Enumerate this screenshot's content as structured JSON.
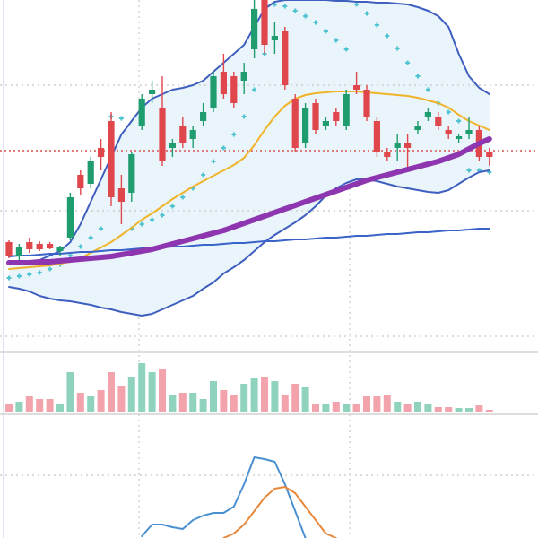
{
  "chart_data": [
    {
      "type": "candlestick",
      "open": [
        120,
        105,
        120,
        118,
        118,
        110,
        125,
        195,
        185,
        225,
        255,
        180,
        175,
        250,
        285,
        270,
        225,
        250,
        235,
        255,
        270,
        310,
        305,
        300,
        335,
        390,
        345,
        355,
        280,
        230,
        275,
        250,
        265,
        250,
        295,
        290,
        255,
        220,
        225,
        230,
        245,
        260,
        260,
        245,
        235,
        240,
        245,
        220
      ],
      "high": [
        122,
        118,
        125,
        121,
        120,
        116,
        175,
        200,
        215,
        235,
        265,
        195,
        220,
        285,
        300,
        305,
        235,
        260,
        250,
        275,
        310,
        330,
        310,
        320,
        390,
        390,
        365,
        360,
        285,
        275,
        280,
        260,
        270,
        290,
        310,
        295,
        260,
        225,
        240,
        240,
        255,
        270,
        265,
        250,
        240,
        260,
        250,
        225
      ],
      "low": [
        102,
        100,
        108,
        110,
        112,
        105,
        122,
        172,
        180,
        200,
        160,
        140,
        165,
        245,
        275,
        205,
        215,
        225,
        225,
        250,
        265,
        280,
        270,
        285,
        325,
        330,
        330,
        290,
        220,
        225,
        240,
        245,
        250,
        245,
        285,
        255,
        215,
        210,
        210,
        200,
        240,
        255,
        245,
        235,
        230,
        235,
        210,
        205
      ],
      "close": [
        105,
        115,
        112,
        112,
        113,
        114,
        170,
        180,
        210,
        215,
        170,
        165,
        218,
        280,
        290,
        210,
        230,
        230,
        245,
        265,
        305,
        285,
        275,
        310,
        380,
        340,
        350,
        295,
        225,
        270,
        245,
        255,
        255,
        285,
        290,
        260,
        220,
        215,
        230,
        225,
        250,
        265,
        250,
        240,
        238,
        245,
        215,
        215
      ],
      "up_color": "#1f9d6f",
      "down_color": "#e0474c",
      "ylim": [
        0,
        390
      ],
      "yticks": [
        15,
        155,
        295
      ],
      "grid": true,
      "price_line": 222,
      "price_line_color": "#d9534f",
      "band_fill": "#eaf4fb",
      "series": [
        {
          "color": "#3f5fbf",
          "style": "line",
          "width": 2,
          "values": [
            95,
            95,
            97,
            100,
            105,
            110,
            120,
            140,
            165,
            190,
            215,
            240,
            255,
            270,
            280,
            285,
            290,
            292,
            295,
            300,
            310,
            320,
            330,
            340,
            360,
            380,
            388,
            390,
            390,
            390,
            390,
            390,
            389,
            389,
            388,
            388,
            387,
            387,
            386,
            385,
            382,
            378,
            372,
            360,
            330,
            305,
            292,
            285
          ]
        },
        {
          "color": "#3f5fbf",
          "style": "line",
          "width": 2,
          "values": [
            70,
            68,
            65,
            60,
            57,
            55,
            54,
            52,
            50,
            47,
            45,
            42,
            40,
            38,
            40,
            45,
            50,
            55,
            60,
            68,
            75,
            85,
            92,
            100,
            110,
            120,
            128,
            135,
            142,
            150,
            160,
            172,
            180,
            186,
            190,
            190,
            188,
            185,
            182,
            180,
            178,
            176,
            175,
            178,
            185,
            192,
            198,
            200
          ]
        },
        {
          "color": "#f0b42a",
          "style": "line",
          "width": 2,
          "values": [
            90,
            91,
            92,
            93,
            94,
            96,
            98,
            102,
            108,
            114,
            120,
            128,
            136,
            145,
            152,
            160,
            168,
            175,
            182,
            188,
            194,
            200,
            206,
            214,
            228,
            245,
            260,
            272,
            280,
            284,
            286,
            287,
            288,
            288,
            288,
            287,
            286,
            285,
            284,
            283,
            281,
            278,
            275,
            270,
            262,
            255,
            250,
            245
          ]
        },
        {
          "color": "#3a63c8",
          "style": "line",
          "width": 2,
          "values": [
            104,
            105,
            105,
            106,
            107,
            107,
            108,
            109,
            109,
            110,
            111,
            111,
            112,
            113,
            113,
            114,
            115,
            115,
            116,
            117,
            117,
            118,
            119,
            119,
            120,
            121,
            121,
            122,
            123,
            123,
            124,
            125,
            125,
            126,
            127,
            127,
            128,
            129,
            129,
            130,
            131,
            131,
            132,
            133,
            133,
            134,
            135,
            135
          ]
        },
        {
          "color": "#8e35b0",
          "style": "line",
          "width": 6,
          "values": [
            97,
            97,
            97,
            98,
            98,
            99,
            100,
            101,
            102,
            103,
            104,
            106,
            108,
            110,
            112,
            115,
            118,
            121,
            124,
            127,
            130,
            133,
            137,
            141,
            145,
            149,
            153,
            157,
            161,
            165,
            169,
            173,
            177,
            181,
            185,
            189,
            192,
            195,
            198,
            201,
            204,
            207,
            210,
            214,
            218,
            224,
            230,
            235
          ]
        },
        {
          "color": "#4fc3d0",
          "style": "dots",
          "width": 2,
          "values": [
            80,
            82,
            84,
            86,
            90,
            95,
            105,
            115,
            125,
            135,
            260,
            258,
            135,
            140,
            145,
            150,
            160,
            170,
            180,
            195,
            210,
            225,
            240,
            260,
            290,
            330,
            385,
            383,
            378,
            372,
            365,
            355,
            345,
            335,
            385,
            375,
            362,
            350,
            336,
            320,
            305,
            290,
            275,
            265,
            255,
            200,
            200,
            198
          ]
        }
      ]
    },
    {
      "type": "bar",
      "values": [
        10,
        12,
        18,
        15,
        15,
        10,
        45,
        22,
        18,
        25,
        45,
        30,
        40,
        55,
        45,
        48,
        20,
        22,
        22,
        15,
        35,
        25,
        20,
        32,
        38,
        40,
        35,
        20,
        32,
        28,
        10,
        10,
        12,
        10,
        10,
        18,
        18,
        20,
        12,
        10,
        12,
        10,
        6,
        6,
        5,
        5,
        8,
        3
      ],
      "up_color": "#8fd3bf",
      "down_color": "#f3a3ab",
      "ylim": [
        0,
        70
      ]
    },
    {
      "type": "line",
      "ylim": [
        0,
        140
      ],
      "yticks": [
        70
      ],
      "grid": true,
      "series": [
        {
          "color": "#4a90d0",
          "values": [
            null,
            null,
            null,
            null,
            null,
            null,
            null,
            null,
            null,
            null,
            null,
            null,
            null,
            2,
            15,
            15,
            12,
            10,
            20,
            25,
            28,
            28,
            35,
            60,
            90,
            88,
            85,
            60,
            30,
            0,
            null,
            null,
            null,
            null,
            null,
            null,
            null,
            null,
            null,
            null,
            null,
            null,
            null,
            null,
            null,
            null,
            null,
            null
          ]
        },
        {
          "color": "#e8883a",
          "values": [
            null,
            null,
            null,
            null,
            null,
            null,
            null,
            null,
            null,
            null,
            null,
            null,
            null,
            null,
            null,
            null,
            null,
            null,
            null,
            null,
            null,
            0,
            5,
            15,
            30,
            45,
            55,
            57,
            50,
            35,
            20,
            5,
            0,
            null,
            null,
            null,
            null,
            null,
            null,
            null,
            null,
            null,
            null,
            null,
            null,
            null,
            null,
            null
          ]
        }
      ]
    }
  ]
}
